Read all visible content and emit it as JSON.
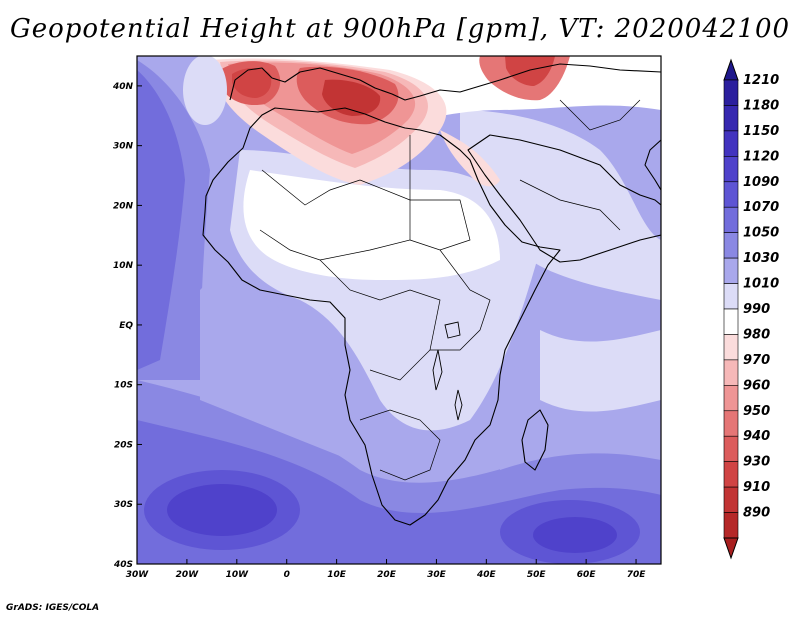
{
  "title": "Geopotential Height at 900hPa [gpm], VT: 2020042100",
  "credit": "GrADS: IGES/COLA",
  "map": {
    "lon_range": [
      -30,
      75
    ],
    "lat_range": [
      -40,
      45
    ],
    "lon_ticks": [
      {
        "value": -30,
        "label": "30W"
      },
      {
        "value": -20,
        "label": "20W"
      },
      {
        "value": -10,
        "label": "10W"
      },
      {
        "value": 0,
        "label": "0"
      },
      {
        "value": 10,
        "label": "10E"
      },
      {
        "value": 20,
        "label": "20E"
      },
      {
        "value": 30,
        "label": "30E"
      },
      {
        "value": 40,
        "label": "40E"
      },
      {
        "value": 50,
        "label": "50E"
      },
      {
        "value": 60,
        "label": "60E"
      },
      {
        "value": 70,
        "label": "70E"
      }
    ],
    "lat_ticks": [
      {
        "value": 40,
        "label": "40N"
      },
      {
        "value": 30,
        "label": "30N"
      },
      {
        "value": 20,
        "label": "20N"
      },
      {
        "value": 10,
        "label": "10N"
      },
      {
        "value": 0,
        "label": "EQ"
      },
      {
        "value": -10,
        "label": "10S"
      },
      {
        "value": -20,
        "label": "20S"
      },
      {
        "value": -30,
        "label": "30S"
      },
      {
        "value": -40,
        "label": "40S"
      }
    ]
  },
  "colorbar": {
    "levels": [
      {
        "label": "1210",
        "color": "#2b1f9e"
      },
      {
        "label": "1180",
        "color": "#3628b0"
      },
      {
        "label": "1150",
        "color": "#4233bf"
      },
      {
        "label": "1120",
        "color": "#4f42cb"
      },
      {
        "label": "1090",
        "color": "#5e55d4"
      },
      {
        "label": "1070",
        "color": "#726ddc"
      },
      {
        "label": "1050",
        "color": "#8a88e3"
      },
      {
        "label": "1030",
        "color": "#a9a8ec"
      },
      {
        "label": "1010",
        "color": "#dcdcf7"
      },
      {
        "label": "990",
        "color": "#ffffff"
      },
      {
        "label": "980",
        "color": "#fbdcdc"
      },
      {
        "label": "970",
        "color": "#f6b8b8"
      },
      {
        "label": "960",
        "color": "#ef9595"
      },
      {
        "label": "950",
        "color": "#e57676"
      },
      {
        "label": "940",
        "color": "#dc5c5c"
      },
      {
        "label": "930",
        "color": "#d04444"
      },
      {
        "label": "910",
        "color": "#c23434"
      },
      {
        "label": "890",
        "color": "#b52828"
      }
    ],
    "top_color": "#1f188c",
    "bottom_color": "#a81f1f"
  },
  "field_features": {
    "high_south_atlantic": {
      "lon": -16,
      "lat": -31,
      "level": 6
    },
    "high_south_indian": {
      "lon": 56,
      "lat": -34,
      "level": 6
    },
    "low_iberia": {
      "lon": -4,
      "lat": 39,
      "level": 15
    },
    "low_mediterranean": {
      "lon": 14,
      "lat": 37,
      "level": 16
    },
    "low_anatolia": {
      "lon": 49,
      "lat": 43,
      "level": 15
    }
  }
}
